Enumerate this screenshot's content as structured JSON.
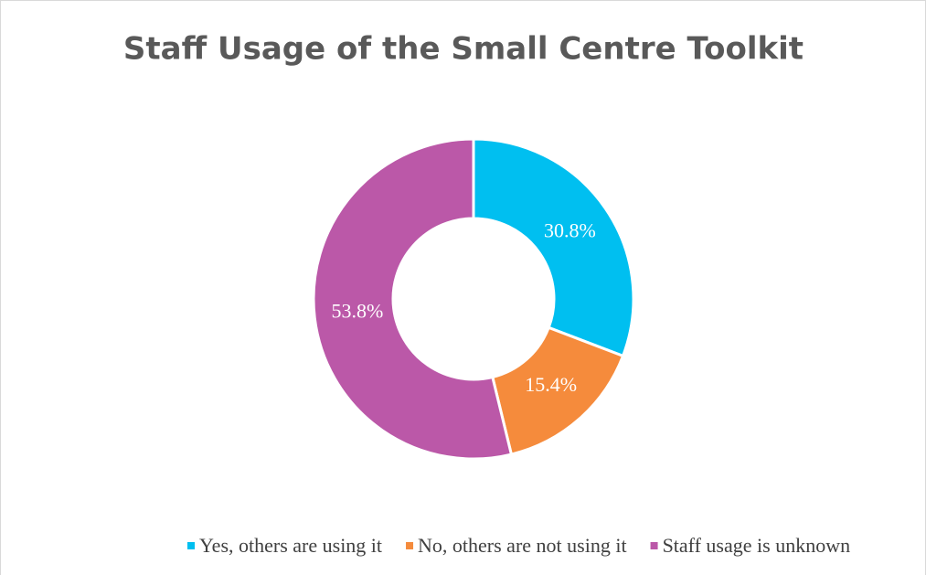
{
  "chart_data": {
    "type": "donut",
    "title": "Staff Usage of the Small Centre Toolkit",
    "categories": [
      "Yes, others are using it",
      "No, others are not using it",
      "Staff usage is unknown"
    ],
    "values": [
      30.8,
      15.4,
      53.8
    ],
    "value_labels": [
      "30.8%",
      "15.4%",
      "53.8%"
    ],
    "colors": [
      "#00bff0",
      "#f58b3c",
      "#bb58a8"
    ],
    "legend": "bottom"
  }
}
